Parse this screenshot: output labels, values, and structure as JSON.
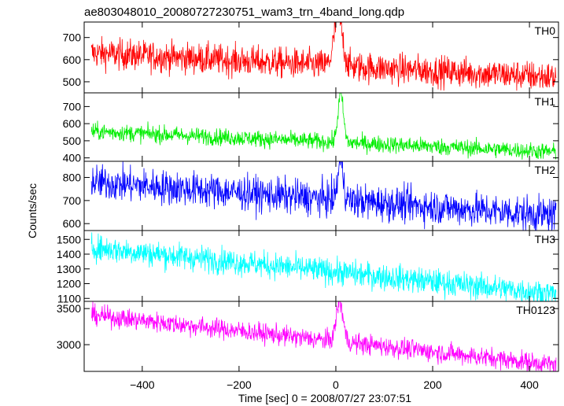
{
  "title": "ae803048010_20080727230751_wam3_trn_4band_long.qdp",
  "ylabel": "Counts/sec",
  "xlabel": "Time [sec] 0 = 2008/07/27 23:07:51",
  "xlim": [
    -520,
    460
  ],
  "xticks": [
    -400,
    -200,
    0,
    200,
    400
  ],
  "xtick_labels": [
    "−400",
    "−200",
    "0",
    "200",
    "400"
  ],
  "chart_data": [
    {
      "type": "line",
      "name": "TH0",
      "color": "#ff0000",
      "ylim": [
        450,
        770
      ],
      "yticks": [
        500,
        600,
        700
      ],
      "ytick_labels": [
        "500",
        "600",
        "700"
      ],
      "x_range": [
        -505,
        455
      ],
      "baseline_start": 630,
      "baseline_end": 520,
      "noise": 35,
      "peak": {
        "x": 5,
        "height": 230,
        "width": 12
      }
    },
    {
      "type": "line",
      "name": "TH1",
      "color": "#00ee00",
      "ylim": [
        380,
        780
      ],
      "yticks": [
        400,
        500,
        600,
        700
      ],
      "ytick_labels": [
        "400",
        "500",
        "600",
        "700"
      ],
      "x_range": [
        -505,
        455
      ],
      "baseline_start": 555,
      "baseline_end": 435,
      "noise": 25,
      "peak": {
        "x": 10,
        "height": 280,
        "width": 8
      }
    },
    {
      "type": "line",
      "name": "TH2",
      "color": "#0000ff",
      "ylim": [
        570,
        870
      ],
      "yticks": [
        600,
        700,
        800
      ],
      "ytick_labels": [
        "600",
        "700",
        "800"
      ],
      "x_range": [
        -505,
        455
      ],
      "baseline_start": 780,
      "baseline_end": 635,
      "noise": 38,
      "peak": {
        "x": 10,
        "height": 170,
        "width": 8
      }
    },
    {
      "type": "line",
      "name": "TH3",
      "color": "#00ffff",
      "ylim": [
        1080,
        1560
      ],
      "yticks": [
        1100,
        1200,
        1300,
        1400,
        1500
      ],
      "ytick_labels": [
        "1100",
        "1200",
        "1300",
        "1400",
        "1500"
      ],
      "x_range": [
        -505,
        455
      ],
      "baseline_start": 1445,
      "baseline_end": 1130,
      "noise": 45,
      "peak": {
        "x": 0,
        "height": 0,
        "width": 10
      }
    },
    {
      "type": "line",
      "name": "TH0123",
      "color": "#ff00ff",
      "ylim": [
        2630,
        3600
      ],
      "yticks": [
        3000,
        3500
      ],
      "ytick_labels": [
        "3000",
        "3500"
      ],
      "x_range": [
        -505,
        455
      ],
      "baseline_start": 3410,
      "baseline_end": 2720,
      "noise": 70,
      "peak": {
        "x": 8,
        "height": 550,
        "width": 10
      }
    }
  ]
}
